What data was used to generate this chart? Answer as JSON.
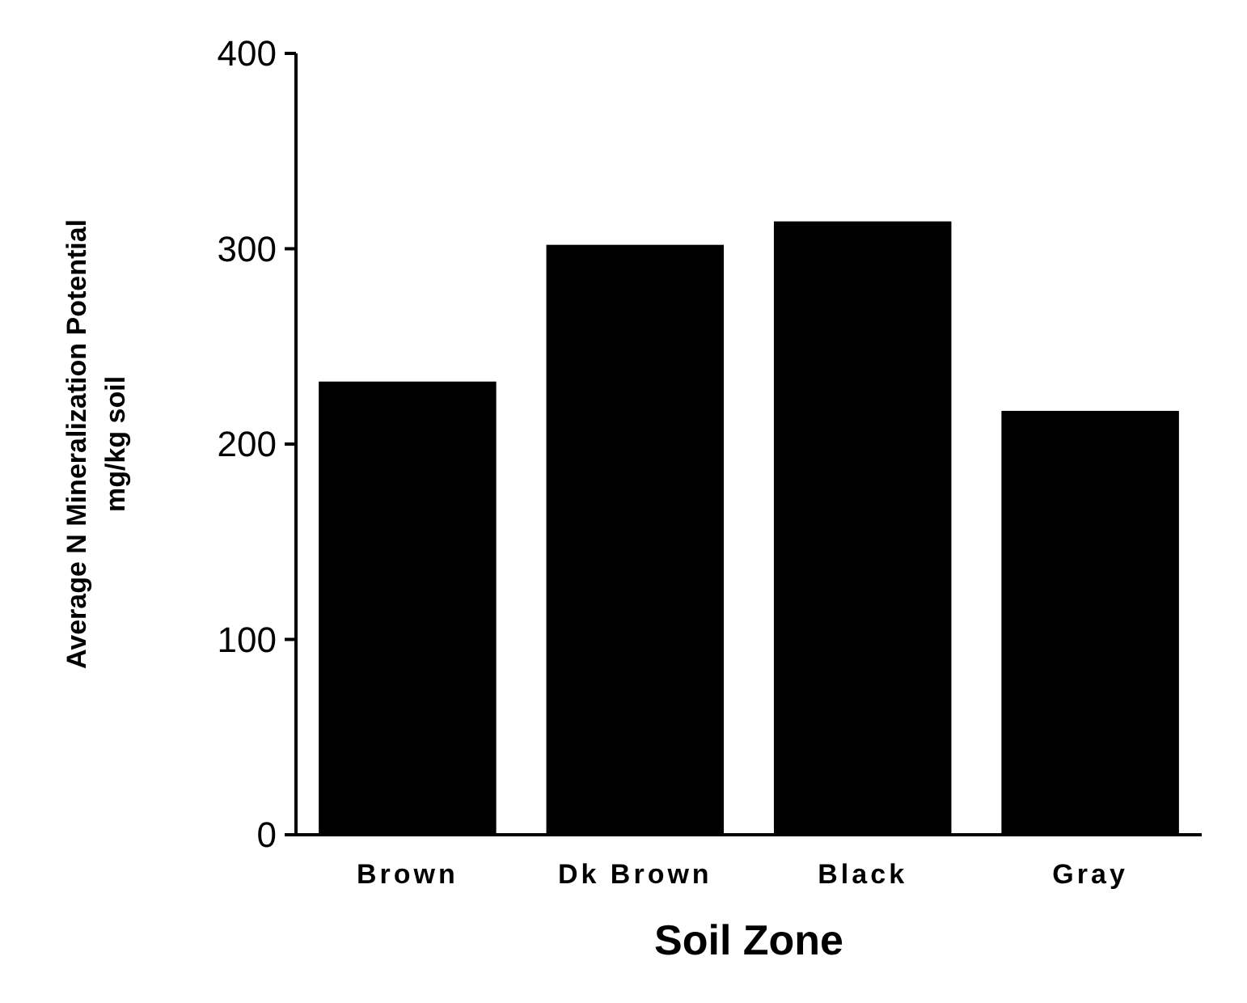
{
  "chart_data": {
    "type": "bar",
    "xlabel": "Soil Zone",
    "ylabel": "Average N Mineralization Potential\nmg/kg soil",
    "categories": [
      "Brown",
      "Dk Brown",
      "Black",
      "Gray"
    ],
    "values": [
      232,
      302,
      314,
      217
    ],
    "color": "#000000",
    "ylim": [
      0,
      400
    ],
    "yticks": [
      0,
      100,
      200,
      300,
      400
    ],
    "grid": false
  }
}
